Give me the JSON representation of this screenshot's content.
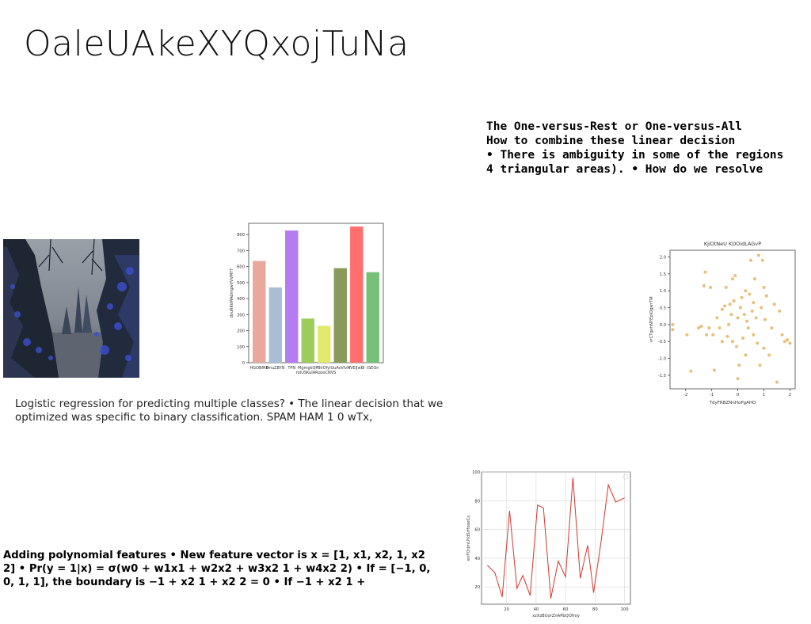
{
  "slide": {
    "title": "OaleUAkeXYQxojTuNa",
    "ovr_lines": [
      "The One-versus-Rest or One-versus-All",
      "How to combine these linear decision",
      "• There is ambiguity in some of the regions",
      "4 triangular areas). • How do we resolve"
    ],
    "logistic_text": "Logistic regression for predicting multiple classes? • The linear decision that we optimized was specific to binary classification. SPAM HAM 1 0 wTx,",
    "poly_text": "Adding polynomial features • New feature vector is x = [1, x1, x2, 1, x2 2] • Pr(y = 1|x) = σ(w0 + w1x1 + w2x2 + w3x2 1 + w4x2 2) • If = [−1, 0, 0, 1, 1], the boundary is −1 + x2 1 + x2 2 = 0 • If −1 + x2 1 +"
  },
  "chart_data": [
    {
      "type": "bar",
      "title": "",
      "xlabel": "rgiUSKuIARqosCNVS",
      "ylabel": "dxuRKkMAdmgwVVVMYT",
      "categories": [
        "HGOBfRB",
        "tmuZBYN",
        "TPN",
        "MgmgkQP",
        "BhOfyi",
        "UuAvVIvH",
        "tVEIJwBI",
        "tSEOn"
      ],
      "values": [
        635,
        470,
        825,
        275,
        230,
        590,
        850,
        565
      ],
      "colors": [
        "#e8a89c",
        "#a9bdd6",
        "#b57cf2",
        "#9ccc5a",
        "#e2ea6e",
        "#8a9a5b",
        "#ff6f6f",
        "#78bf78"
      ],
      "ylim": [
        0,
        870
      ],
      "yticks": [
        0,
        100,
        200,
        300,
        400,
        500,
        600,
        700,
        800
      ]
    },
    {
      "type": "scatter",
      "title": "KjiDtNeU KDOidLAGvP",
      "xlabel": "TdyFRBZNnHoPgAHO",
      "ylabel": "vrCTgvhNYEpiQgwrTM",
      "color": "#e6b86a",
      "xlim": [
        -2.6,
        2.2
      ],
      "ylim": [
        -1.9,
        2.2
      ],
      "xticks": [
        -2,
        -1,
        0,
        1,
        2
      ],
      "yticks": [
        -1.5,
        -1.0,
        -0.5,
        0.0,
        0.5,
        1.0,
        1.5,
        2.0
      ],
      "points": [
        [
          -2.5,
          0.0
        ],
        [
          -2.5,
          -0.15
        ],
        [
          -1.95,
          -0.3
        ],
        [
          -1.8,
          -1.38
        ],
        [
          -1.5,
          -0.1
        ],
        [
          -1.4,
          -0.05
        ],
        [
          -1.3,
          1.15
        ],
        [
          -1.25,
          1.55
        ],
        [
          -1.2,
          -0.3
        ],
        [
          -1.1,
          -0.1
        ],
        [
          -1.05,
          1.1
        ],
        [
          -0.95,
          -0.3
        ],
        [
          -0.9,
          -1.35
        ],
        [
          -0.8,
          0.2
        ],
        [
          -0.7,
          -0.1
        ],
        [
          -0.6,
          0.45
        ],
        [
          -0.5,
          0.55
        ],
        [
          -0.45,
          1.1
        ],
        [
          -0.4,
          -0.35
        ],
        [
          -0.35,
          0.0
        ],
        [
          -0.3,
          0.6
        ],
        [
          -0.25,
          0.3
        ],
        [
          -0.2,
          -0.5
        ],
        [
          -0.15,
          0.7
        ],
        [
          -0.1,
          1.45
        ],
        [
          -0.05,
          -0.65
        ],
        [
          0.0,
          0.2
        ],
        [
          0.0,
          -1.6
        ],
        [
          0.05,
          -1.2
        ],
        [
          0.1,
          0.5
        ],
        [
          0.15,
          0.8
        ],
        [
          0.2,
          -0.4
        ],
        [
          0.25,
          0.3
        ],
        [
          0.3,
          1.0
        ],
        [
          0.35,
          0.1
        ],
        [
          0.4,
          -0.1
        ],
        [
          0.45,
          0.9
        ],
        [
          0.5,
          1.9
        ],
        [
          0.55,
          0.4
        ],
        [
          0.6,
          -0.3
        ],
        [
          0.65,
          1.35
        ],
        [
          0.7,
          0.2
        ],
        [
          0.75,
          -0.55
        ],
        [
          0.8,
          2.05
        ],
        [
          0.85,
          -1.2
        ],
        [
          0.9,
          0.5
        ],
        [
          0.95,
          1.9
        ],
        [
          1.0,
          -0.7
        ],
        [
          1.05,
          0.15
        ],
        [
          1.1,
          0.85
        ],
        [
          1.2,
          -0.9
        ],
        [
          1.3,
          -0.1
        ],
        [
          1.4,
          0.6
        ],
        [
          1.5,
          -1.7
        ],
        [
          1.6,
          0.4
        ],
        [
          1.7,
          -0.3
        ],
        [
          1.8,
          -0.5
        ],
        [
          1.9,
          -0.45
        ],
        [
          2.0,
          -0.55
        ],
        [
          -0.6,
          -0.5
        ],
        [
          0.3,
          -0.9
        ],
        [
          -0.2,
          1.35
        ],
        [
          0.6,
          0.65
        ],
        [
          1.0,
          1.1
        ]
      ]
    },
    {
      "type": "line",
      "title": "",
      "xlabel": "xzXzBUorZnAPbQOfroy",
      "ylabel": "enFQrjmUYdSrHoxeCs",
      "color": "#d9342b",
      "xlim": [
        3,
        104
      ],
      "ylim": [
        8,
        100
      ],
      "xticks": [
        20,
        40,
        60,
        80,
        100
      ],
      "yticks": [
        20,
        40,
        60,
        80,
        100
      ],
      "x": [
        7,
        12,
        17,
        22,
        27,
        31,
        36,
        41,
        45,
        50,
        55,
        60,
        65,
        70,
        75,
        79,
        84,
        89,
        94,
        100
      ],
      "y": [
        35,
        30,
        13,
        73,
        19,
        28,
        14,
        77,
        75,
        12,
        38,
        27,
        96,
        26,
        49,
        16,
        51,
        91,
        79,
        82
      ]
    }
  ]
}
